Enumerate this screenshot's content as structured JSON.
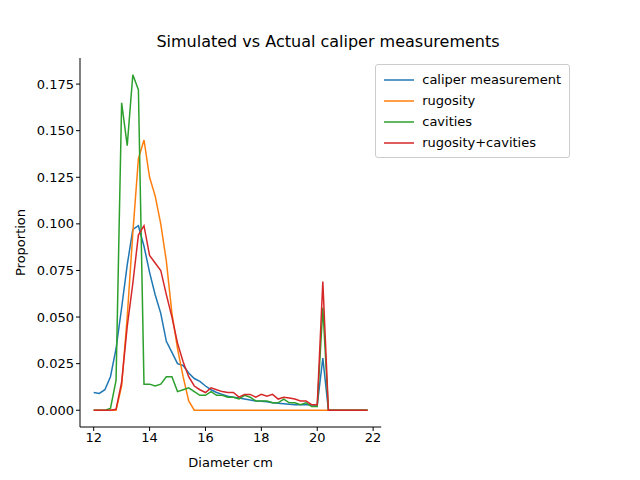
{
  "chart_data": {
    "type": "line",
    "title": "Simulated vs Actual caliper measurements",
    "x_label": "Diameter cm",
    "y_label": "Proportion",
    "legend": "upper right",
    "grid": false,
    "x": [
      12.0,
      12.2,
      12.4,
      12.6,
      12.8,
      13.0,
      13.2,
      13.4,
      13.6,
      13.8,
      14.0,
      14.2,
      14.4,
      14.6,
      14.8,
      15.0,
      15.2,
      15.4,
      15.6,
      15.8,
      16.0,
      16.2,
      16.4,
      16.6,
      16.8,
      17.0,
      17.2,
      17.4,
      17.6,
      17.8,
      18.0,
      18.2,
      18.4,
      18.6,
      18.8,
      19.0,
      19.2,
      19.4,
      19.6,
      19.8,
      20.0,
      20.2,
      20.4,
      20.6,
      20.8,
      21.0,
      21.2,
      21.4,
      21.6,
      21.8
    ],
    "series": [
      {
        "name": "caliper measurement",
        "color": "#1f77b4",
        "values": [
          0.0095,
          0.009,
          0.011,
          0.018,
          0.033,
          0.055,
          0.078,
          0.097,
          0.099,
          0.088,
          0.074,
          0.062,
          0.052,
          0.037,
          0.031,
          0.025,
          0.024,
          0.02,
          0.017,
          0.0155,
          0.013,
          0.011,
          0.0095,
          0.0085,
          0.0075,
          0.007,
          0.0065,
          0.006,
          0.0055,
          0.005,
          0.0048,
          0.0045,
          0.004,
          0.0038,
          0.0035,
          0.0032,
          0.003,
          0.003,
          0.003,
          0.0028,
          0.0028,
          0.028,
          0,
          0,
          0,
          0,
          0,
          0,
          0,
          0
        ]
      },
      {
        "name": "rugosity",
        "color": "#ff7f0e",
        "values": [
          0,
          0,
          0,
          0,
          0,
          0.013,
          0.05,
          0.095,
          0.135,
          0.145,
          0.125,
          0.115,
          0.1,
          0.08,
          0.052,
          0.033,
          0.018,
          0.005,
          0,
          0,
          0,
          0,
          0,
          0,
          0,
          0,
          0,
          0,
          0,
          0,
          0,
          0,
          0,
          0,
          0,
          0,
          0,
          0,
          0,
          0,
          0,
          0,
          0,
          0,
          0,
          0,
          0,
          0,
          0,
          0
        ]
      },
      {
        "name": "cavities",
        "color": "#2ca02c",
        "values": [
          0,
          0,
          0,
          0.001,
          0.016,
          0.165,
          0.142,
          0.18,
          0.172,
          0.014,
          0.014,
          0.013,
          0.014,
          0.018,
          0.018,
          0.01,
          0.011,
          0.012,
          0.01,
          0.008,
          0.008,
          0.01,
          0.008,
          0.008,
          0.007,
          0.007,
          0.006,
          0.008,
          0.007,
          0.005,
          0.005,
          0.005,
          0.004,
          0.004,
          0.006,
          0.004,
          0.004,
          0.003,
          0.004,
          0.002,
          0.002,
          0.055,
          0,
          0,
          0,
          0,
          0,
          0,
          0,
          0
        ]
      },
      {
        "name": "rugosity+cavities",
        "color": "#d62728",
        "values": [
          0,
          0,
          0,
          0,
          0.0005,
          0.015,
          0.045,
          0.068,
          0.094,
          0.099,
          0.083,
          0.079,
          0.075,
          0.062,
          0.05,
          0.036,
          0.026,
          0.018,
          0.013,
          0.011,
          0.0095,
          0.012,
          0.011,
          0.01,
          0.0095,
          0.0095,
          0.007,
          0.0085,
          0.0085,
          0.007,
          0.0085,
          0.0075,
          0.0085,
          0.006,
          0.007,
          0.0065,
          0.006,
          0.005,
          0.005,
          0.003,
          0.003,
          0.069,
          0,
          0,
          0,
          0,
          0,
          0,
          0,
          0
        ]
      }
    ],
    "xlim": [
      11.51,
      22.29
    ],
    "xticks": [
      12,
      14,
      16,
      18,
      20,
      22
    ],
    "ylim": [
      -0.009,
      0.189
    ],
    "yticks": [
      {
        "value": 0,
        "label": "0.000"
      },
      {
        "value": 0.025,
        "label": "0.025"
      },
      {
        "value": 0.05,
        "label": "0.050"
      },
      {
        "value": 0.075,
        "label": "0.075"
      },
      {
        "value": 0.1,
        "label": "0.100"
      },
      {
        "value": 0.125,
        "label": "0.125"
      },
      {
        "value": 0.15,
        "label": "0.150"
      },
      {
        "value": 0.175,
        "label": "0.175"
      }
    ]
  }
}
